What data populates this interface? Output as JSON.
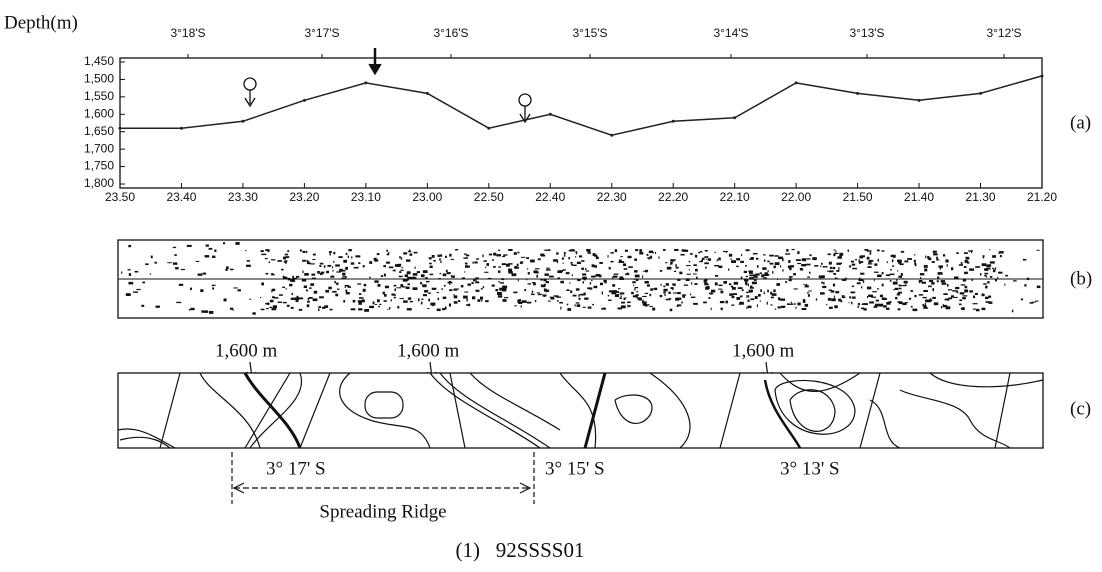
{
  "chart_data": {
    "type": "line",
    "y_label": "Depth(m)",
    "panel_label": "(a)",
    "top_labels": [
      "3°18'S",
      "3°17'S",
      "3°16'S",
      "3°15'S",
      "3°14'S",
      "3°13'S",
      "3°12'S"
    ],
    "categories": [
      "23.50",
      "23.40",
      "23.30",
      "23.20",
      "23.10",
      "23.00",
      "22.50",
      "22.40",
      "22.30",
      "22.20",
      "22.10",
      "22.00",
      "21.50",
      "21.40",
      "21.30",
      "21.20"
    ],
    "values": [
      1640,
      1640,
      1620,
      1560,
      1510,
      1540,
      1640,
      1600,
      1660,
      1620,
      1610,
      1510,
      1540,
      1560,
      1540,
      1490
    ],
    "color": "#222222",
    "ylim": [
      1800,
      1450
    ],
    "yticks": [
      {
        "value": 1450,
        "label": "1,450"
      },
      {
        "value": 1500,
        "label": "1,500"
      },
      {
        "value": 1550,
        "label": "1,550"
      },
      {
        "value": 1600,
        "label": "1,600"
      },
      {
        "value": 1650,
        "label": "1,650"
      },
      {
        "value": 1700,
        "label": "1,700"
      },
      {
        "value": 1750,
        "label": "1,750"
      },
      {
        "value": 1800,
        "label": "1,800"
      }
    ]
  },
  "panel_b": {
    "label": "(b)"
  },
  "panel_c": {
    "label": "(c)",
    "depth_labels": [
      "1,600 m",
      "1,600 m",
      "1,600 m"
    ],
    "latitude_labels": [
      "3° 17' S",
      "3° 15' S",
      "3° 13' S"
    ],
    "ridge_label": "Spreading Ridge"
  },
  "caption": "(1)   92SSSS01"
}
